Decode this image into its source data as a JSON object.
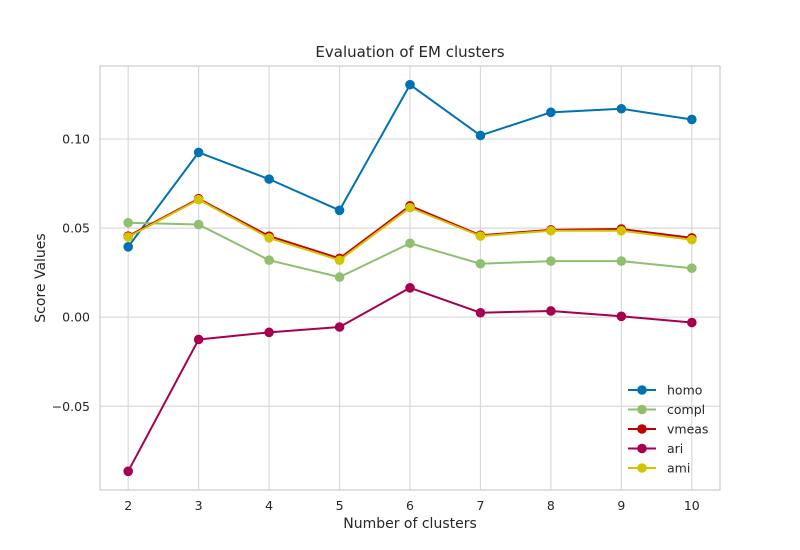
{
  "chart_data": {
    "type": "line",
    "title": "Evaluation of EM clusters",
    "xlabel": "Number of clusters",
    "ylabel": "Score Values",
    "x": [
      2,
      3,
      4,
      5,
      6,
      7,
      8,
      9,
      10
    ],
    "xlim": [
      1.6,
      10.4
    ],
    "ylim": [
      -0.097,
      0.141
    ],
    "xticks": [
      "2",
      "3",
      "4",
      "5",
      "6",
      "7",
      "8",
      "9",
      "10"
    ],
    "yticks": [
      {
        "value": 0.1,
        "label": "0.10"
      },
      {
        "value": 0.05,
        "label": "0.05"
      },
      {
        "value": 0.0,
        "label": "0.00"
      },
      {
        "value": -0.05,
        "label": "−0.05"
      }
    ],
    "grid": true,
    "legend_position": "lower right",
    "series": [
      {
        "name": "homo",
        "color": "#0072b2",
        "values": [
          0.0395,
          0.0925,
          0.0775,
          0.06,
          0.1305,
          0.102,
          0.115,
          0.117,
          0.111
        ]
      },
      {
        "name": "compl",
        "color": "#8fbf6f",
        "values": [
          0.053,
          0.052,
          0.032,
          0.0225,
          0.0415,
          0.03,
          0.0315,
          0.0315,
          0.0275
        ]
      },
      {
        "name": "vmeas",
        "color": "#c00000",
        "values": [
          0.0455,
          0.0665,
          0.0455,
          0.033,
          0.0625,
          0.046,
          0.049,
          0.0495,
          0.0445
        ]
      },
      {
        "name": "ari",
        "color": "#a6004f",
        "values": [
          -0.0865,
          -0.0125,
          -0.0085,
          -0.0055,
          0.0165,
          0.0025,
          0.0035,
          0.0005,
          -0.003
        ]
      },
      {
        "name": "ami",
        "color": "#d4c400",
        "values": [
          0.045,
          0.066,
          0.0445,
          0.032,
          0.0615,
          0.0455,
          0.0485,
          0.0485,
          0.0435
        ]
      }
    ]
  }
}
